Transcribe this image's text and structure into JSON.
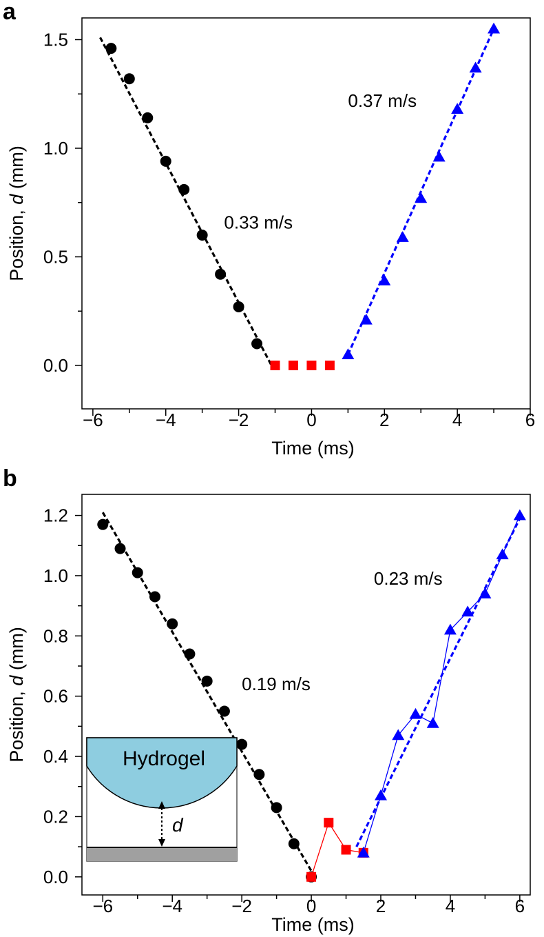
{
  "chart_data": [
    {
      "panel": "a",
      "type": "scatter",
      "xlabel": "Time (ms)",
      "ylabel_prefix": "Position, ",
      "ylabel_var": "d",
      "ylabel_suffix": " (mm)",
      "xlim": [
        -6.3,
        6
      ],
      "ylim": [
        -0.2,
        1.6
      ],
      "xticks": [
        -6,
        -4,
        -2,
        0,
        2,
        4,
        6
      ],
      "xtick_labels": [
        "−6",
        "−4",
        "−2",
        "0",
        "2",
        "4",
        "6"
      ],
      "yticks": [
        0.0,
        0.5,
        1.0,
        1.5
      ],
      "ytick_labels": [
        "0.0",
        "0.5",
        "1.0",
        "1.5"
      ],
      "series": [
        {
          "marker": "circle",
          "color": "#000000",
          "x": [
            -5.5,
            -5.0,
            -4.5,
            -4.0,
            -3.5,
            -3.0,
            -2.5,
            -2.0,
            -1.5
          ],
          "y": [
            1.46,
            1.32,
            1.14,
            0.94,
            0.81,
            0.6,
            0.42,
            0.27,
            0.1
          ]
        },
        {
          "marker": "square",
          "color": "#ff0000",
          "x": [
            -1.0,
            -0.5,
            0.0,
            0.5
          ],
          "y": [
            0.0,
            0.0,
            0.0,
            0.0
          ]
        },
        {
          "marker": "triangle",
          "color": "#0000ff",
          "x": [
            1.0,
            1.5,
            2.0,
            2.5,
            3.0,
            3.5,
            4.0,
            4.5,
            5.0
          ],
          "y": [
            0.05,
            0.21,
            0.39,
            0.59,
            0.77,
            0.96,
            1.18,
            1.37,
            1.55
          ]
        }
      ],
      "fit_lines": [
        {
          "color": "#000000",
          "x": [
            -5.8,
            -1.1
          ],
          "y": [
            1.51,
            0.0
          ]
        },
        {
          "color": "#0000ff",
          "x": [
            1.0,
            5.0
          ],
          "y": [
            0.05,
            1.55
          ]
        }
      ],
      "annotations": [
        {
          "text": "0.33 m/s",
          "x": -2.4,
          "y": 0.63
        },
        {
          "text": "0.37 m/s",
          "x": 1.0,
          "y": 1.19
        }
      ]
    },
    {
      "panel": "b",
      "type": "scatter",
      "xlabel": "Time (ms)",
      "ylabel_prefix": "Position, ",
      "ylabel_var": "d",
      "ylabel_suffix": " (mm)",
      "xlim": [
        -6.6,
        6.3
      ],
      "ylim": [
        -0.06,
        1.27
      ],
      "xticks": [
        -6,
        -4,
        -2,
        0,
        2,
        4,
        6
      ],
      "xtick_labels": [
        "−6",
        "−4",
        "−2",
        "0",
        "2",
        "4",
        "6"
      ],
      "yticks": [
        0.0,
        0.2,
        0.4,
        0.6,
        0.8,
        1.0,
        1.2
      ],
      "ytick_labels": [
        "0.0",
        "0.2",
        "0.4",
        "0.6",
        "0.8",
        "1.0",
        "1.2"
      ],
      "series": [
        {
          "marker": "circle",
          "color": "#000000",
          "connected": false,
          "x": [
            -6.0,
            -5.5,
            -5.0,
            -4.5,
            -4.0,
            -3.5,
            -3.0,
            -2.5,
            -2.0,
            -1.5,
            -1.0,
            -0.5,
            0.0
          ],
          "y": [
            1.17,
            1.09,
            1.01,
            0.93,
            0.84,
            0.74,
            0.65,
            0.55,
            0.44,
            0.34,
            0.23,
            0.11,
            0.0
          ]
        },
        {
          "marker": "square",
          "color": "#ff0000",
          "connected": true,
          "x": [
            0.0,
            0.5,
            1.0,
            1.5
          ],
          "y": [
            0.0,
            0.18,
            0.09,
            0.08
          ]
        },
        {
          "marker": "triangle",
          "color": "#0000ff",
          "connected": true,
          "x": [
            1.5,
            2.0,
            2.5,
            3.0,
            3.5,
            4.0,
            4.5,
            5.0,
            5.5,
            6.0
          ],
          "y": [
            0.08,
            0.27,
            0.47,
            0.54,
            0.51,
            0.82,
            0.88,
            0.94,
            1.07,
            1.2
          ]
        }
      ],
      "fit_lines": [
        {
          "color": "#000000",
          "x": [
            -6.0,
            0.1
          ],
          "y": [
            1.21,
            0.0
          ]
        },
        {
          "color": "#0000ff",
          "x": [
            1.3,
            6.0
          ],
          "y": [
            0.1,
            1.19
          ]
        }
      ],
      "annotations": [
        {
          "text": "0.19 m/s",
          "x": -2.0,
          "y": 0.62
        },
        {
          "text": "0.23 m/s",
          "x": 1.8,
          "y": 0.97
        }
      ],
      "inset": {
        "title": "Hydrogel",
        "label": "d",
        "hydrogel_color": "#8ecde0",
        "substrate_color": "#a0a0a0"
      }
    }
  ]
}
